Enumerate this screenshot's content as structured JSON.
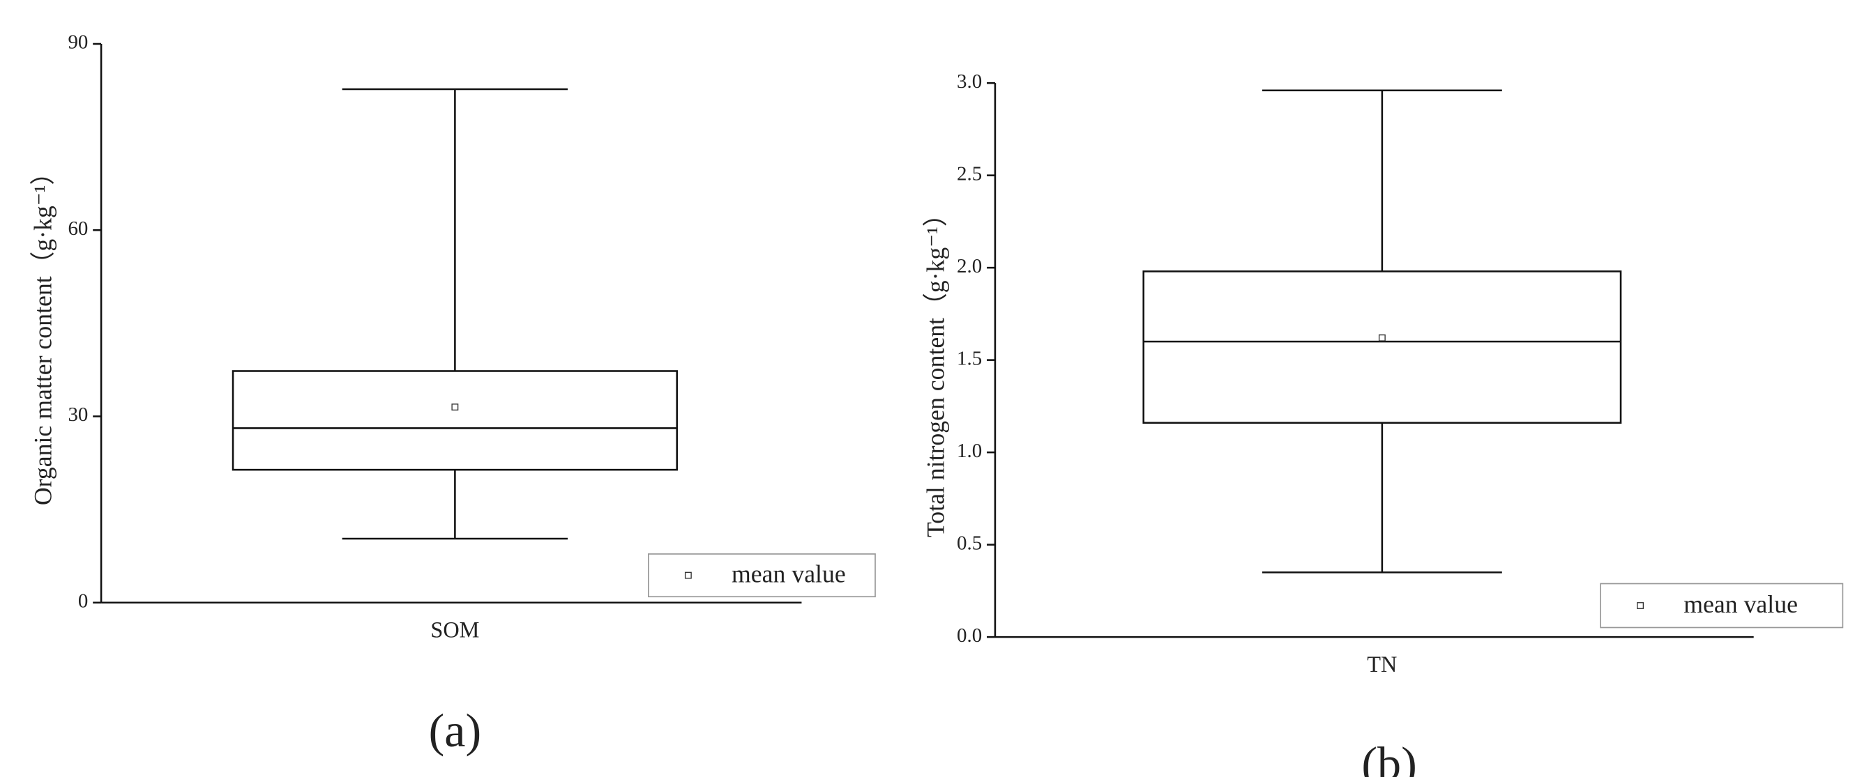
{
  "chart_data": [
    {
      "type": "box",
      "label": "(a)",
      "ylabel": "Organic matter content（g·kg⁻¹）",
      "categories": [
        "SOM"
      ],
      "boxes": [
        {
          "min": 10.3,
          "q1": 21.4,
          "median": 28.1,
          "q3": 37.3,
          "max": 82.7,
          "mean": 31.5
        }
      ],
      "ylim": [
        0,
        90
      ],
      "yticks": [
        0,
        30,
        60,
        90
      ],
      "legend": {
        "label": "mean value",
        "position": "lower right"
      }
    },
    {
      "type": "box",
      "label": "(b)",
      "ylabel": "Total nitrogen content（g·kg⁻¹）",
      "categories": [
        "TN"
      ],
      "boxes": [
        {
          "min": 0.35,
          "q1": 1.16,
          "median": 1.6,
          "q3": 1.98,
          "max": 2.96,
          "mean": 1.62
        }
      ],
      "ylim": [
        0,
        3
      ],
      "yticks": [
        {
          "value": 0,
          "label": "0.0"
        },
        0.5,
        {
          "value": 1,
          "label": "1.0"
        },
        1.5,
        {
          "value": 2,
          "label": "2.0"
        },
        2.5,
        {
          "value": 3,
          "label": "3.0"
        }
      ],
      "legend": {
        "label": "mean value",
        "position": "lower right"
      }
    }
  ]
}
